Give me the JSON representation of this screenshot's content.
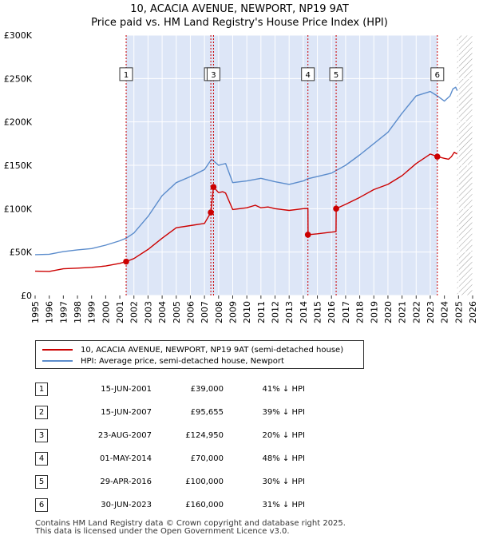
{
  "title_lines": [
    "10, ACACIA AVENUE, NEWPORT, NP19 9AT",
    "Price paid vs. HM Land Registry's House Price Index (HPI)"
  ],
  "colors": {
    "red": "#cc0000",
    "blue": "#5b8ccc",
    "shade": "#dde6f7",
    "hatch": "#999999",
    "grid": "#ffffff",
    "bg": "#ffffff"
  },
  "chart_data": {
    "type": "line",
    "xlim": [
      1995,
      2026
    ],
    "ylim": [
      0,
      300000
    ],
    "y_ticks": [
      0,
      50000,
      100000,
      150000,
      200000,
      250000,
      300000
    ],
    "y_tick_labels": [
      "£0",
      "£50K",
      "£100K",
      "£150K",
      "£200K",
      "£250K",
      "£300K"
    ],
    "x_ticks": [
      1995,
      1996,
      1997,
      1998,
      1999,
      2000,
      2001,
      2002,
      2003,
      2004,
      2005,
      2006,
      2007,
      2008,
      2009,
      2010,
      2011,
      2012,
      2013,
      2014,
      2015,
      2016,
      2017,
      2018,
      2019,
      2020,
      2021,
      2022,
      2023,
      2024,
      2025,
      2026
    ],
    "x_tick_labels": [
      "1995",
      "1996",
      "1997",
      "1998",
      "1999",
      "2000",
      "2001",
      "2002",
      "2003",
      "2004",
      "2005",
      "2006",
      "2007",
      "2008",
      "2009",
      "2010",
      "2011",
      "2012",
      "2013",
      "2014",
      "2015",
      "2016",
      "2017",
      "2018",
      "2019",
      "2020",
      "2021",
      "2022",
      "2023",
      "2024",
      "2025",
      "2026"
    ],
    "shaded_period": [
      2001.45,
      2023.5
    ],
    "future_from": 2024.9,
    "series": [
      {
        "name": "10, ACACIA AVENUE, NEWPORT, NP19 9AT (semi-detached house)",
        "color": "#cc0000",
        "points": [
          [
            1995,
            28000
          ],
          [
            1996,
            27700
          ],
          [
            1997,
            30700
          ],
          [
            1998,
            31500
          ],
          [
            1999,
            32400
          ],
          [
            2000,
            34000
          ],
          [
            2001,
            37000
          ],
          [
            2001.45,
            39000
          ],
          [
            2002,
            42500
          ],
          [
            2003,
            53000
          ],
          [
            2004,
            66000
          ],
          [
            2005,
            78000
          ],
          [
            2006,
            80500
          ],
          [
            2007,
            83000
          ],
          [
            2007.45,
            95655
          ],
          [
            2007.64,
            124950
          ],
          [
            2008,
            118500
          ],
          [
            2008.3,
            119500
          ],
          [
            2008.5,
            118000
          ],
          [
            2009,
            99000
          ],
          [
            2010,
            101000
          ],
          [
            2010.6,
            104000
          ],
          [
            2011,
            101000
          ],
          [
            2011.5,
            102000
          ],
          [
            2012,
            100000
          ],
          [
            2013,
            98000
          ],
          [
            2014,
            100000
          ],
          [
            2014.33,
            100200
          ],
          [
            2014.34,
            70000
          ],
          [
            2015,
            71000
          ],
          [
            2016,
            73000
          ],
          [
            2016.32,
            73500
          ],
          [
            2016.33,
            100000
          ],
          [
            2017,
            105000
          ],
          [
            2018,
            113000
          ],
          [
            2019,
            122000
          ],
          [
            2020,
            128000
          ],
          [
            2021,
            138000
          ],
          [
            2022,
            152000
          ],
          [
            2023,
            163000
          ],
          [
            2023.5,
            160000
          ],
          [
            2024,
            158000
          ],
          [
            2024.3,
            157000
          ],
          [
            2024.5,
            160000
          ],
          [
            2024.7,
            165000
          ],
          [
            2024.9,
            163000
          ]
        ]
      },
      {
        "name": "HPI: Average price, semi-detached house, Newport",
        "color": "#5b8ccc",
        "points": [
          [
            1995,
            47000
          ],
          [
            1996,
            47500
          ],
          [
            1997,
            50500
          ],
          [
            1998,
            52500
          ],
          [
            1999,
            54000
          ],
          [
            2000,
            58000
          ],
          [
            2001,
            63000
          ],
          [
            2001.45,
            66000
          ],
          [
            2002,
            72000
          ],
          [
            2003,
            91000
          ],
          [
            2004,
            115000
          ],
          [
            2005,
            130000
          ],
          [
            2006,
            137000
          ],
          [
            2007,
            145000
          ],
          [
            2007.5,
            157000
          ],
          [
            2008,
            150000
          ],
          [
            2008.5,
            152000
          ],
          [
            2009,
            130000
          ],
          [
            2010,
            132000
          ],
          [
            2011,
            135000
          ],
          [
            2012,
            131000
          ],
          [
            2013,
            128000
          ],
          [
            2014,
            132000
          ],
          [
            2014.33,
            134500
          ],
          [
            2015,
            137000
          ],
          [
            2016,
            141000
          ],
          [
            2017,
            150000
          ],
          [
            2018,
            162000
          ],
          [
            2019,
            175000
          ],
          [
            2020,
            188000
          ],
          [
            2021,
            210000
          ],
          [
            2022,
            230000
          ],
          [
            2023,
            235000
          ],
          [
            2023.5,
            230000
          ],
          [
            2024,
            224000
          ],
          [
            2024.4,
            230000
          ],
          [
            2024.6,
            238000
          ],
          [
            2024.8,
            240000
          ],
          [
            2024.9,
            236000
          ]
        ]
      }
    ],
    "markers": [
      {
        "label": "1",
        "x": 2001.45,
        "y": 39000
      },
      {
        "label": "2",
        "x": 2007.45,
        "y": 95655
      },
      {
        "label": "3",
        "x": 2007.64,
        "y": 124950
      },
      {
        "label": "4",
        "x": 2014.33,
        "y": 70000
      },
      {
        "label": "5",
        "x": 2016.33,
        "y": 100000
      },
      {
        "label": "6",
        "x": 2023.5,
        "y": 160000
      }
    ],
    "marker_label_y": 255000,
    "legend": [
      "10, ACACIA AVENUE, NEWPORT, NP19 9AT (semi-detached house)",
      "HPI: Average price, semi-detached house, Newport"
    ]
  },
  "transactions": [
    {
      "num": "1",
      "date": "15-JUN-2001",
      "price": "£39,000",
      "hpi": "41% ↓ HPI"
    },
    {
      "num": "2",
      "date": "15-JUN-2007",
      "price": "£95,655",
      "hpi": "39% ↓ HPI"
    },
    {
      "num": "3",
      "date": "23-AUG-2007",
      "price": "£124,950",
      "hpi": "20% ↓ HPI"
    },
    {
      "num": "4",
      "date": "01-MAY-2014",
      "price": "£70,000",
      "hpi": "48% ↓ HPI"
    },
    {
      "num": "5",
      "date": "29-APR-2016",
      "price": "£100,000",
      "hpi": "30% ↓ HPI"
    },
    {
      "num": "6",
      "date": "30-JUN-2023",
      "price": "£160,000",
      "hpi": "31% ↓ HPI"
    }
  ],
  "footer": [
    "Contains HM Land Registry data © Crown copyright and database right 2025.",
    "This data is licensed under the Open Government Licence v3.0."
  ]
}
